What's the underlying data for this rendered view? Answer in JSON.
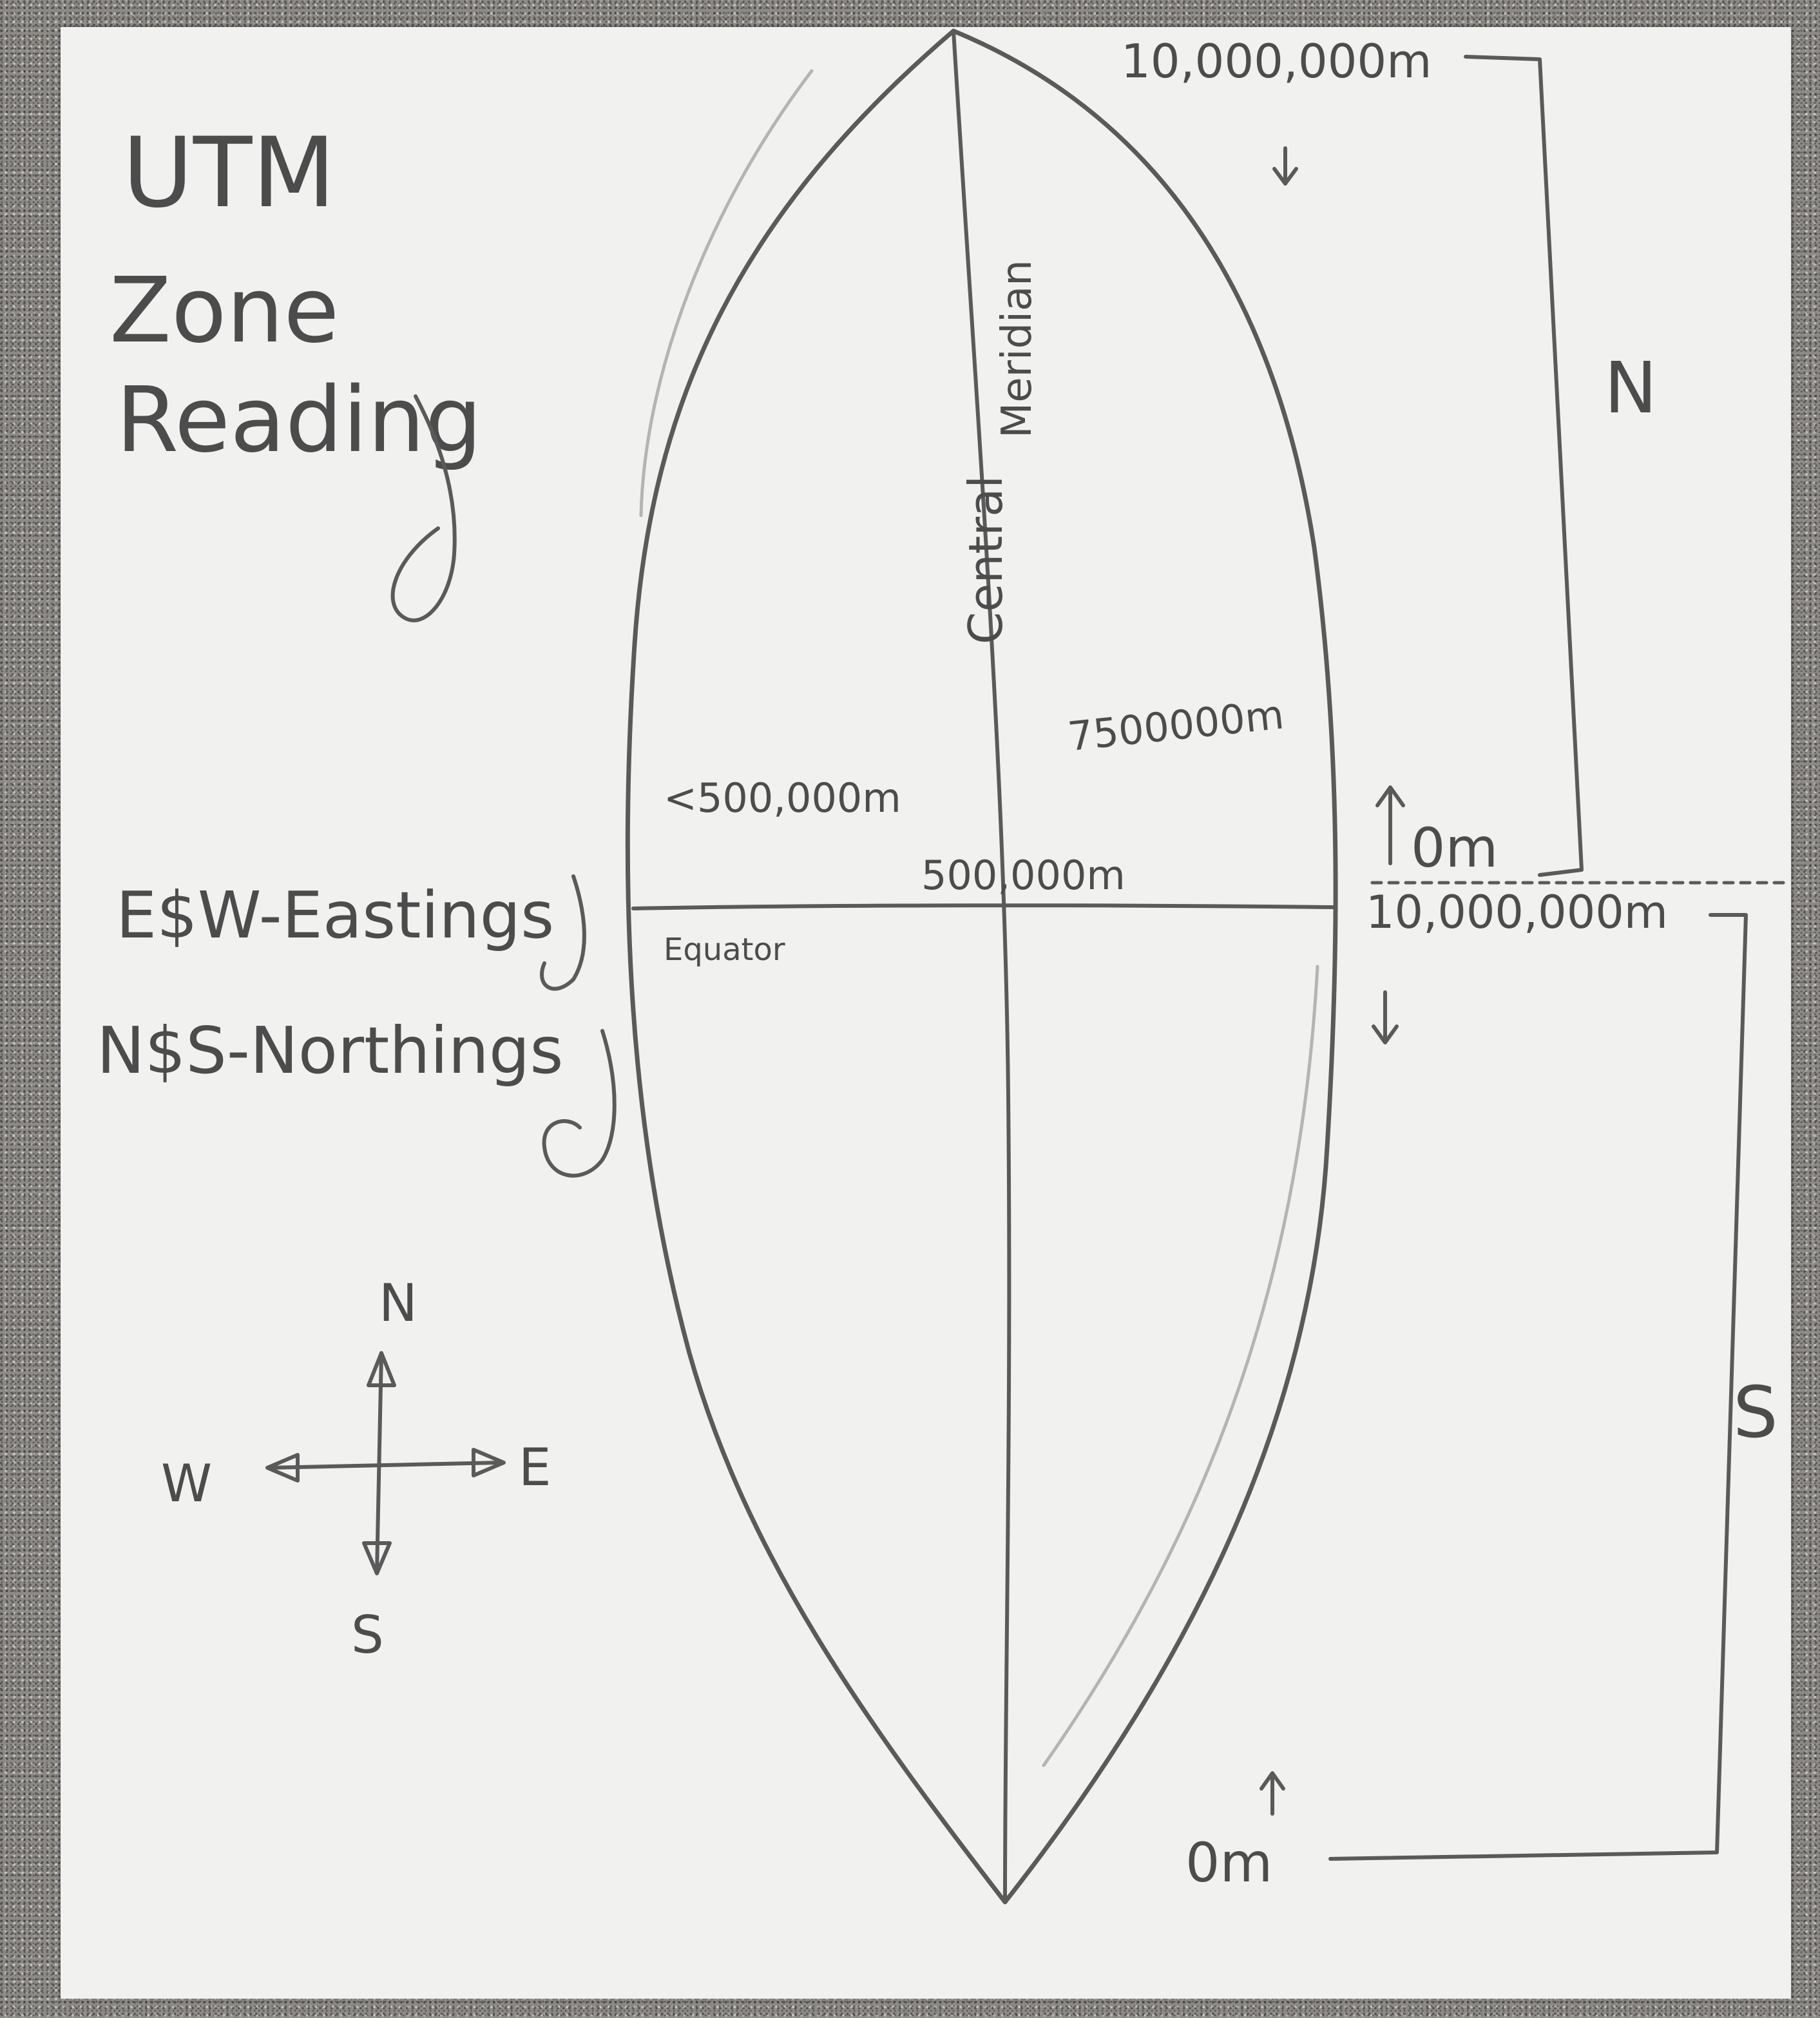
{
  "title": {
    "line1": "UTM",
    "line2": "Zone",
    "line3": "Reading"
  },
  "notes": {
    "eastings": "E$W-Eastings",
    "northings": "N$S-Northings"
  },
  "zone": {
    "central_meridian_word1": "Central",
    "central_meridian_word2": "Meridian",
    "equator": "Equator",
    "center_easting": "500,000m",
    "west_easting": "<500,000m",
    "east_easting": "7500000m"
  },
  "north_scale": {
    "label": "N",
    "top_value": "10,000,000m",
    "bottom_value": "0m"
  },
  "south_scale": {
    "label": "S",
    "top_value": "10,000,000m",
    "bottom_value": "0m"
  },
  "compass": {
    "north": "N",
    "south": "S",
    "east": "E",
    "west": "W"
  }
}
